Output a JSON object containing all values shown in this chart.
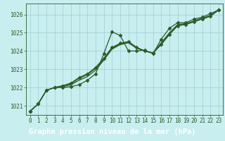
{
  "title": "Graphe pression niveau de la mer (hPa)",
  "background_color": "#c8eef0",
  "grid_color": "#9ecfcf",
  "line_color": "#2d5a27",
  "xlim": [
    -0.5,
    23.5
  ],
  "ylim": [
    1020.5,
    1026.6
  ],
  "yticks": [
    1021,
    1022,
    1023,
    1024,
    1025,
    1026
  ],
  "xticks": [
    0,
    1,
    2,
    3,
    4,
    5,
    6,
    7,
    8,
    9,
    10,
    11,
    12,
    13,
    14,
    15,
    16,
    17,
    18,
    19,
    20,
    21,
    22,
    23
  ],
  "series": [
    {
      "x": [
        0,
        1,
        2,
        3,
        4,
        5,
        6,
        7,
        8,
        9,
        10,
        11,
        12,
        13,
        14,
        15,
        16,
        17,
        18,
        19,
        20,
        21,
        22,
        23
      ],
      "y": [
        1020.7,
        1021.1,
        1021.85,
        1022.0,
        1022.0,
        1022.05,
        1022.15,
        1022.4,
        1022.75,
        1023.85,
        1025.05,
        1024.85,
        1024.0,
        1024.0,
        1024.05,
        1023.85,
        1024.65,
        1025.25,
        1025.55,
        1025.55,
        1025.75,
        1025.85,
        1026.05,
        1026.25
      ],
      "marker": true,
      "marker_style": "D",
      "marker_size": 2.5,
      "linewidth": 0.9
    },
    {
      "x": [
        0,
        1,
        2,
        3,
        4,
        5,
        6,
        7,
        8,
        9,
        10,
        11,
        12,
        13,
        14,
        15,
        16,
        17,
        18,
        19,
        20,
        21,
        22,
        23
      ],
      "y": [
        1020.7,
        1021.1,
        1021.85,
        1022.0,
        1022.05,
        1022.15,
        1022.4,
        1022.6,
        1022.95,
        1023.5,
        1024.1,
        1024.35,
        1024.45,
        1024.15,
        1024.0,
        1023.9,
        1024.45,
        1025.0,
        1025.45,
        1025.5,
        1025.65,
        1025.8,
        1025.95,
        1026.25
      ],
      "marker": false,
      "linewidth": 0.9
    },
    {
      "x": [
        0,
        1,
        2,
        3,
        4,
        5,
        6,
        7,
        8,
        9,
        10,
        11,
        12,
        13,
        14,
        15,
        16,
        17,
        18,
        19,
        20,
        21,
        22,
        23
      ],
      "y": [
        1020.7,
        1021.1,
        1021.85,
        1022.0,
        1022.1,
        1022.2,
        1022.5,
        1022.7,
        1023.05,
        1023.55,
        1024.15,
        1024.38,
        1024.48,
        1024.18,
        1024.0,
        1023.88,
        1024.4,
        1024.95,
        1025.42,
        1025.48,
        1025.62,
        1025.78,
        1025.92,
        1026.25
      ],
      "marker": false,
      "linewidth": 0.9
    },
    {
      "x": [
        0,
        1,
        2,
        3,
        4,
        5,
        6,
        7,
        8,
        9,
        10,
        11,
        12,
        13,
        14,
        15,
        16,
        17,
        18,
        19,
        20,
        21,
        22,
        23
      ],
      "y": [
        1020.7,
        1021.1,
        1021.85,
        1022.0,
        1022.1,
        1022.25,
        1022.55,
        1022.75,
        1023.1,
        1023.6,
        1024.2,
        1024.42,
        1024.52,
        1024.2,
        1024.0,
        1023.88,
        1024.35,
        1024.9,
        1025.38,
        1025.45,
        1025.6,
        1025.75,
        1025.9,
        1026.25
      ],
      "marker": true,
      "marker_style": "D",
      "marker_size": 2.5,
      "linewidth": 0.9
    }
  ],
  "title_bg": "#2d5a27",
  "title_fg": "#ffffff",
  "title_fontsize": 7.5,
  "tick_fontsize": 5.5
}
